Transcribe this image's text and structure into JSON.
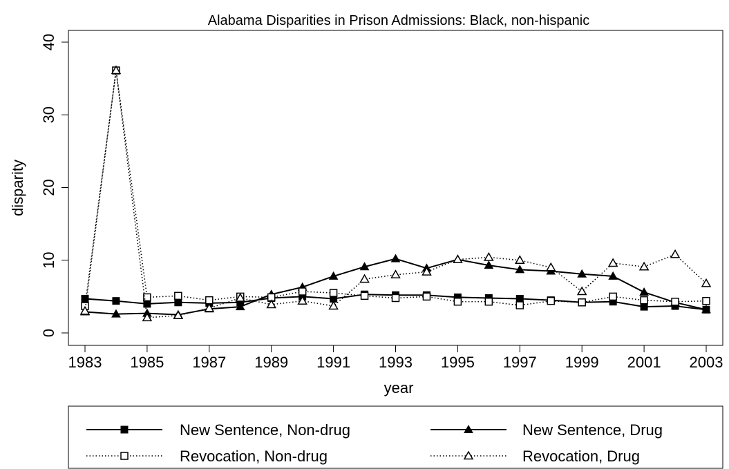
{
  "chart_data": {
    "type": "line",
    "title": "Alabama Disparities in Prison Admissions: Black, non-hispanic",
    "xlabel": "year",
    "ylabel": "disparity",
    "xlim": [
      1983,
      2003
    ],
    "ylim": [
      0,
      40
    ],
    "x_ticks": [
      1983,
      1985,
      1987,
      1989,
      1991,
      1993,
      1995,
      1997,
      1999,
      2001,
      2003
    ],
    "y_ticks": [
      0,
      10,
      20,
      30,
      40
    ],
    "grid": false,
    "legend_position": "bottom",
    "x": [
      1983,
      1984,
      1985,
      1986,
      1987,
      1988,
      1989,
      1990,
      1991,
      1992,
      1993,
      1994,
      1995,
      1996,
      1997,
      1998,
      1999,
      2000,
      2001,
      2002,
      2003
    ],
    "series": [
      {
        "name": "New Sentence, Non-drug",
        "line": "solid",
        "marker": "square-filled",
        "values": [
          4.7,
          4.4,
          4.0,
          4.2,
          4.1,
          4.2,
          4.8,
          5.0,
          4.7,
          5.3,
          5.2,
          5.2,
          4.9,
          4.8,
          4.7,
          4.5,
          4.2,
          4.3,
          3.6,
          3.7,
          3.2
        ]
      },
      {
        "name": "New Sentence, Drug",
        "line": "solid",
        "marker": "triangle-filled",
        "values": [
          2.9,
          2.6,
          2.7,
          2.5,
          3.3,
          3.6,
          5.3,
          6.3,
          7.8,
          9.1,
          10.2,
          8.9,
          10.1,
          9.3,
          8.7,
          8.5,
          8.1,
          7.8,
          5.6,
          4.2,
          3.2
        ]
      },
      {
        "name": "Revocation, Non-drug",
        "line": "dotted",
        "marker": "square-hollow",
        "values": [
          3.7,
          36.1,
          4.9,
          5.1,
          4.5,
          5.0,
          4.9,
          5.7,
          5.5,
          5.1,
          4.8,
          5.0,
          4.3,
          4.3,
          3.8,
          4.4,
          4.2,
          5.0,
          4.5,
          4.3,
          4.4
        ]
      },
      {
        "name": "Revocation, Drug",
        "line": "dotted",
        "marker": "triangle-hollow",
        "values": [
          3.0,
          36.1,
          2.1,
          2.4,
          3.4,
          4.8,
          3.9,
          4.4,
          3.7,
          7.4,
          8.0,
          8.4,
          10.1,
          10.4,
          10.0,
          9.0,
          5.7,
          9.6,
          9.1,
          10.8,
          6.8
        ]
      }
    ]
  }
}
